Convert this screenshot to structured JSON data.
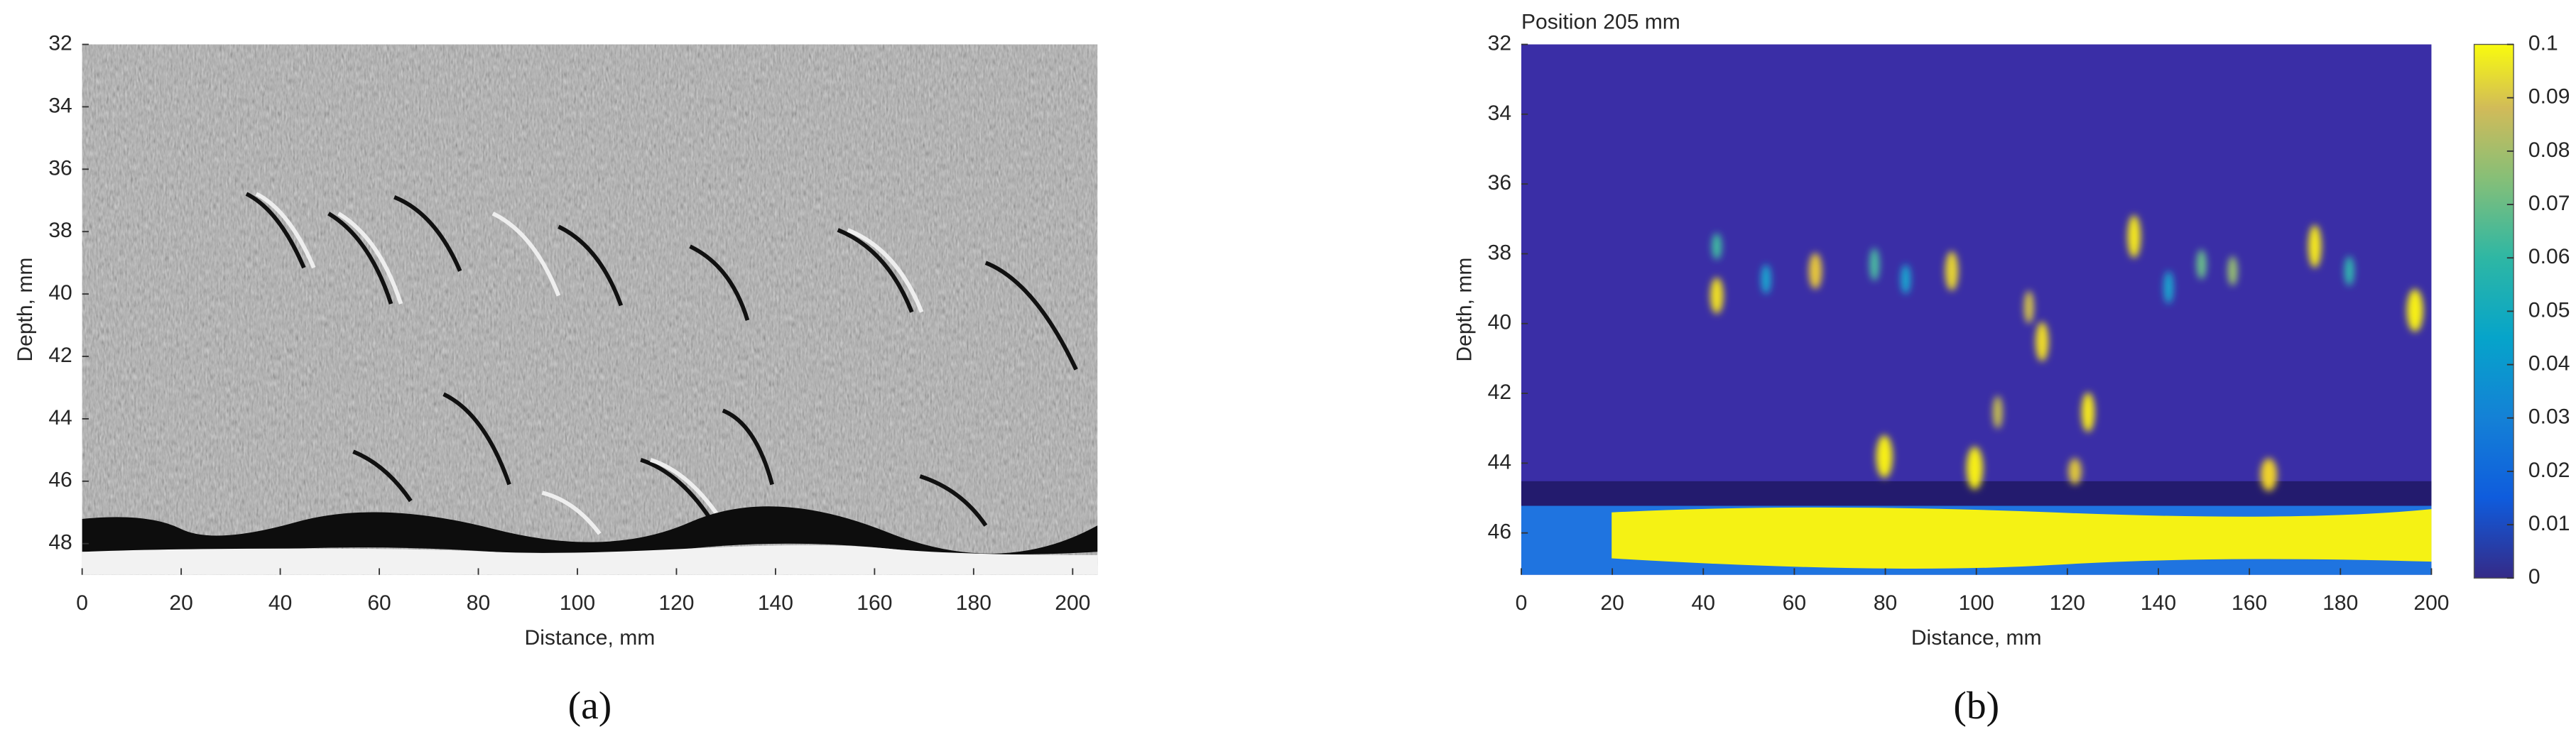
{
  "chart_data": [
    {
      "type": "image",
      "panel_label": "(a)",
      "xlabel": "Distance, mm",
      "ylabel": "Depth, mm",
      "xlim": [
        0,
        205
      ],
      "xticks": [
        0,
        20,
        40,
        60,
        80,
        100,
        120,
        140,
        160,
        180,
        200
      ],
      "ylim": [
        32,
        49
      ],
      "yticks": [
        32,
        34,
        36,
        38,
        40,
        42,
        44,
        46,
        48
      ],
      "y_reversed": true,
      "colormap": "gray"
    },
    {
      "type": "heatmap",
      "title": "Position 205 mm",
      "panel_label": "(b)",
      "xlabel": "Distance, mm",
      "ylabel": "Depth, mm",
      "xlim": [
        0,
        200
      ],
      "xticks": [
        0,
        20,
        40,
        60,
        80,
        100,
        120,
        140,
        160,
        180,
        200
      ],
      "ylim": [
        32,
        47.2
      ],
      "yticks": [
        32,
        34,
        36,
        38,
        40,
        42,
        44,
        46
      ],
      "y_reversed": true,
      "colormap": "parula",
      "colorbar": {
        "lim": [
          0,
          0.1
        ],
        "ticks": [
          0,
          0.01,
          0.02,
          0.03,
          0.04,
          0.05,
          0.06,
          0.07,
          0.08,
          0.09,
          0.1
        ]
      }
    }
  ]
}
